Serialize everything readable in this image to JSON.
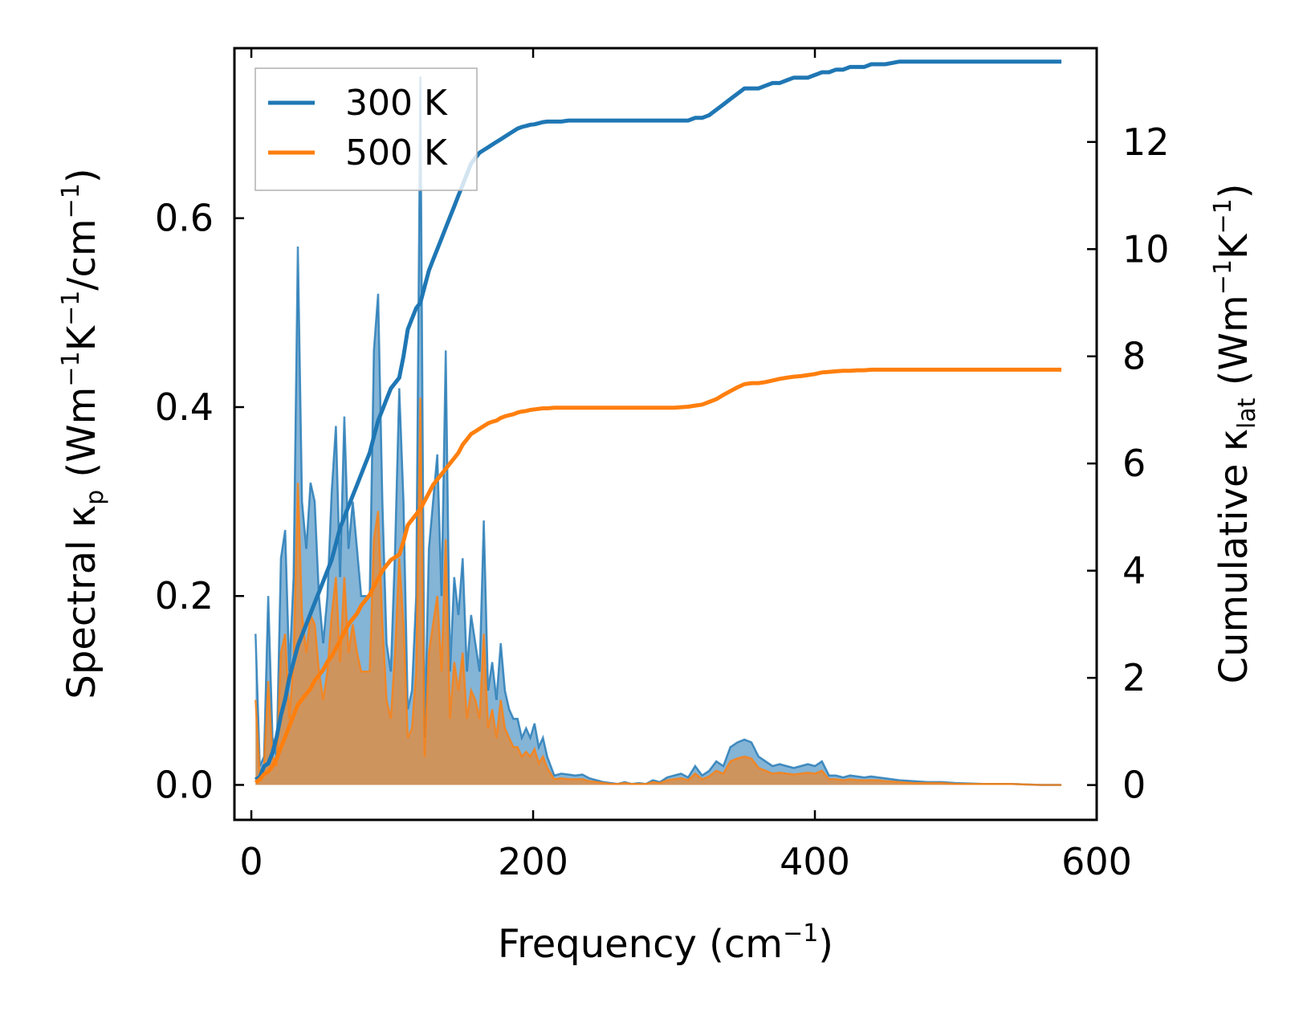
{
  "chart_data": {
    "type": "line",
    "xlabel": {
      "base": "Frequency (cm",
      "sup": "−1",
      "tail": ")"
    },
    "ylabel_left": {
      "p1": "Spectral κ",
      "sub": "p",
      "p2": " (Wm",
      "sup1": "−1",
      "p3": "K",
      "sup2": "−1",
      "p4": "/cm",
      "sup3": "−1",
      "p5": ")"
    },
    "ylabel_right": {
      "p1": "Cumulative κ",
      "sub": "lat",
      "p2": " (Wm",
      "sup1": "−1",
      "p3": "K",
      "sup2": "−1",
      "p4": ")"
    },
    "xlim": [
      -12,
      600
    ],
    "ylim_left": [
      -0.037,
      0.78
    ],
    "ylim_right": [
      -0.65,
      13.75
    ],
    "xticks": [
      0,
      200,
      400,
      600
    ],
    "xtick_labels": [
      "0",
      "200",
      "400",
      "600"
    ],
    "yticks_left": [
      0.0,
      0.2,
      0.4,
      0.6
    ],
    "ytick_labels_left": [
      "0.0",
      "0.2",
      "0.4",
      "0.6"
    ],
    "yticks_right": [
      0,
      2,
      4,
      6,
      8,
      10,
      12
    ],
    "ytick_labels_right": [
      "0",
      "2",
      "4",
      "6",
      "8",
      "10",
      "12"
    ],
    "legend": {
      "placement": "top-left",
      "entries": [
        "300 K",
        "500 K"
      ]
    },
    "colors": {
      "300 K": "#1f77b4",
      "500 K": "#ff7f0e"
    },
    "spectral_x": [
      3,
      6,
      9,
      12,
      15,
      18,
      21,
      24,
      27,
      30,
      33,
      36,
      39,
      42,
      45,
      48,
      51,
      54,
      57,
      60,
      63,
      66,
      69,
      72,
      75,
      78,
      81,
      84,
      87,
      90,
      93,
      96,
      99,
      102,
      105,
      108,
      111,
      114,
      117,
      120,
      123,
      126,
      129,
      132,
      135,
      138,
      141,
      144,
      147,
      150,
      153,
      156,
      159,
      162,
      165,
      168,
      171,
      174,
      177,
      180,
      183,
      186,
      189,
      192,
      195,
      198,
      201,
      204,
      207,
      210,
      215,
      220,
      225,
      230,
      235,
      240,
      245,
      250,
      255,
      260,
      265,
      270,
      275,
      280,
      285,
      290,
      295,
      300,
      305,
      310,
      315,
      320,
      325,
      330,
      335,
      340,
      345,
      350,
      355,
      360,
      365,
      370,
      375,
      380,
      385,
      390,
      395,
      400,
      405,
      410,
      415,
      420,
      425,
      430,
      435,
      440,
      445,
      450,
      460,
      470,
      480,
      490,
      500,
      520,
      540,
      560,
      575
    ],
    "series": [
      {
        "name": "300 K",
        "spectral_values": [
          0.16,
          0.02,
          0.03,
          0.2,
          0.05,
          0.03,
          0.24,
          0.27,
          0.12,
          0.22,
          0.57,
          0.3,
          0.25,
          0.32,
          0.3,
          0.2,
          0.15,
          0.2,
          0.31,
          0.38,
          0.22,
          0.39,
          0.25,
          0.3,
          0.25,
          0.2,
          0.2,
          0.2,
          0.46,
          0.52,
          0.3,
          0.15,
          0.12,
          0.25,
          0.42,
          0.3,
          0.08,
          0.1,
          0.2,
          0.75,
          0.05,
          0.25,
          0.3,
          0.35,
          0.2,
          0.46,
          0.12,
          0.22,
          0.18,
          0.24,
          0.12,
          0.18,
          0.15,
          0.12,
          0.28,
          0.1,
          0.13,
          0.09,
          0.15,
          0.1,
          0.08,
          0.07,
          0.07,
          0.05,
          0.06,
          0.05,
          0.065,
          0.04,
          0.05,
          0.03,
          0.01,
          0.012,
          0.011,
          0.01,
          0.011,
          0.007,
          0.005,
          0.003,
          0.002,
          0.001,
          0.003,
          0.001,
          0.002,
          0.001,
          0.005,
          0.003,
          0.008,
          0.01,
          0.012,
          0.008,
          0.02,
          0.01,
          0.015,
          0.025,
          0.02,
          0.04,
          0.045,
          0.048,
          0.045,
          0.03,
          0.025,
          0.02,
          0.022,
          0.02,
          0.018,
          0.02,
          0.022,
          0.02,
          0.025,
          0.01,
          0.01,
          0.008,
          0.01,
          0.009,
          0.008,
          0.009,
          0.008,
          0.007,
          0.005,
          0.004,
          0.003,
          0.003,
          0.002,
          0.001,
          0.001,
          0.0,
          0.0
        ],
        "cumulative_values": [
          0.1,
          0.15,
          0.35,
          0.4,
          0.6,
          0.9,
          1.3,
          1.6,
          2.0,
          2.3,
          2.6,
          2.8,
          3.0,
          3.2,
          3.4,
          3.6,
          3.8,
          4.0,
          4.2,
          4.5,
          4.8,
          5.0,
          5.2,
          5.4,
          5.6,
          5.8,
          6.0,
          6.2,
          6.5,
          6.8,
          7.0,
          7.2,
          7.4,
          7.5,
          7.6,
          8.0,
          8.5,
          8.7,
          8.9,
          9.0,
          9.3,
          9.6,
          9.8,
          10.0,
          10.2,
          10.4,
          10.6,
          10.8,
          11.0,
          11.2,
          11.4,
          11.6,
          11.7,
          11.8,
          11.85,
          11.9,
          11.95,
          12.0,
          12.05,
          12.1,
          12.15,
          12.2,
          12.25,
          12.28,
          12.3,
          12.32,
          12.33,
          12.35,
          12.37,
          12.38,
          12.38,
          12.38,
          12.4,
          12.4,
          12.4,
          12.4,
          12.4,
          12.4,
          12.4,
          12.4,
          12.4,
          12.4,
          12.4,
          12.4,
          12.4,
          12.4,
          12.4,
          12.4,
          12.4,
          12.4,
          12.45,
          12.45,
          12.5,
          12.6,
          12.7,
          12.8,
          12.9,
          13.0,
          13.0,
          13.0,
          13.05,
          13.1,
          13.1,
          13.15,
          13.2,
          13.2,
          13.2,
          13.25,
          13.3,
          13.3,
          13.35,
          13.35,
          13.4,
          13.4,
          13.4,
          13.45,
          13.45,
          13.45,
          13.5,
          13.5,
          13.5,
          13.5,
          13.5,
          13.5,
          13.5,
          13.5,
          13.5
        ]
      },
      {
        "name": "500 K",
        "spectral_values": [
          0.09,
          0.01,
          0.02,
          0.11,
          0.03,
          0.02,
          0.14,
          0.16,
          0.07,
          0.13,
          0.32,
          0.18,
          0.14,
          0.18,
          0.17,
          0.12,
          0.09,
          0.12,
          0.18,
          0.22,
          0.13,
          0.22,
          0.14,
          0.17,
          0.14,
          0.12,
          0.12,
          0.12,
          0.26,
          0.29,
          0.17,
          0.09,
          0.07,
          0.14,
          0.24,
          0.17,
          0.05,
          0.06,
          0.12,
          0.41,
          0.03,
          0.14,
          0.17,
          0.2,
          0.12,
          0.26,
          0.07,
          0.13,
          0.1,
          0.14,
          0.07,
          0.1,
          0.09,
          0.07,
          0.16,
          0.06,
          0.08,
          0.05,
          0.09,
          0.06,
          0.05,
          0.04,
          0.04,
          0.03,
          0.035,
          0.03,
          0.038,
          0.023,
          0.03,
          0.018,
          0.006,
          0.007,
          0.006,
          0.006,
          0.006,
          0.004,
          0.003,
          0.002,
          0.001,
          0.001,
          0.002,
          0.001,
          0.001,
          0.001,
          0.003,
          0.002,
          0.005,
          0.006,
          0.007,
          0.005,
          0.012,
          0.006,
          0.009,
          0.015,
          0.012,
          0.025,
          0.028,
          0.03,
          0.028,
          0.018,
          0.015,
          0.012,
          0.013,
          0.012,
          0.011,
          0.012,
          0.013,
          0.012,
          0.015,
          0.006,
          0.006,
          0.005,
          0.006,
          0.005,
          0.005,
          0.005,
          0.005,
          0.004,
          0.003,
          0.002,
          0.002,
          0.002,
          0.001,
          0.001,
          0.001,
          0.0,
          0.0
        ],
        "cumulative_values": [
          0.05,
          0.1,
          0.2,
          0.25,
          0.35,
          0.5,
          0.7,
          0.9,
          1.1,
          1.3,
          1.5,
          1.6,
          1.7,
          1.8,
          1.95,
          2.05,
          2.15,
          2.3,
          2.4,
          2.55,
          2.7,
          2.85,
          3.0,
          3.1,
          3.2,
          3.35,
          3.45,
          3.55,
          3.7,
          3.85,
          4.0,
          4.1,
          4.2,
          4.25,
          4.3,
          4.55,
          4.85,
          4.95,
          5.05,
          5.15,
          5.3,
          5.45,
          5.6,
          5.7,
          5.8,
          5.9,
          6.0,
          6.1,
          6.2,
          6.35,
          6.45,
          6.55,
          6.6,
          6.65,
          6.7,
          6.75,
          6.78,
          6.8,
          6.85,
          6.88,
          6.9,
          6.92,
          6.95,
          6.97,
          6.98,
          7.0,
          7.01,
          7.02,
          7.03,
          7.03,
          7.04,
          7.04,
          7.04,
          7.04,
          7.04,
          7.04,
          7.04,
          7.04,
          7.04,
          7.04,
          7.04,
          7.04,
          7.04,
          7.04,
          7.04,
          7.04,
          7.04,
          7.04,
          7.05,
          7.06,
          7.08,
          7.1,
          7.15,
          7.2,
          7.28,
          7.35,
          7.42,
          7.48,
          7.5,
          7.5,
          7.52,
          7.55,
          7.58,
          7.6,
          7.62,
          7.63,
          7.65,
          7.67,
          7.7,
          7.71,
          7.72,
          7.73,
          7.73,
          7.74,
          7.74,
          7.75,
          7.75,
          7.75,
          7.75,
          7.75,
          7.75,
          7.75,
          7.75,
          7.75,
          7.75,
          7.75,
          7.75
        ]
      }
    ]
  }
}
